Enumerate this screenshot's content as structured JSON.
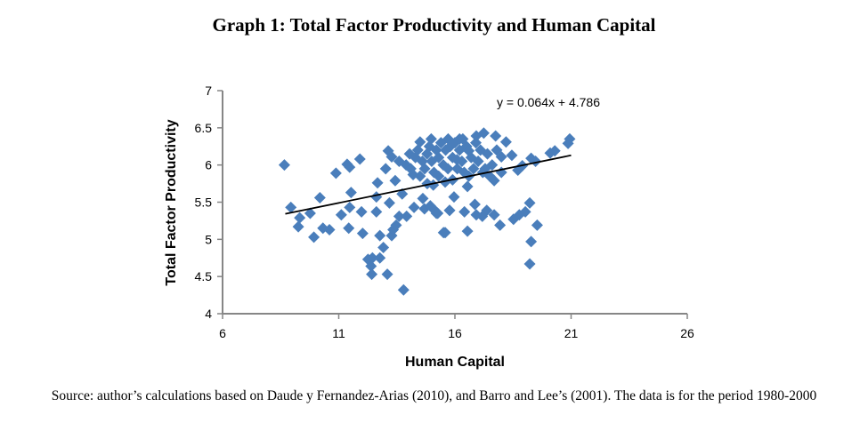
{
  "chart_data": {
    "type": "scatter",
    "title": "Graph 1: Total Factor Productivity and Human Capital",
    "xlabel": "Human Capital",
    "ylabel": "Total Factor Productivity",
    "xlim": [
      6,
      26
    ],
    "ylim": [
      4,
      7
    ],
    "xticks": [
      "6",
      "11",
      "16",
      "21",
      "26"
    ],
    "yticks": [
      "4",
      "4.5",
      "5",
      "5.5",
      "6",
      "6.5",
      "7"
    ],
    "xtick_values": [
      6,
      11,
      16,
      21,
      26
    ],
    "ytick_values": [
      4,
      4.5,
      5,
      5.5,
      6,
      6.5,
      7
    ],
    "grid": false,
    "marker_color": "#4a7ebb",
    "trendline": {
      "slope": 0.064,
      "intercept": 4.786,
      "x_range": [
        8.7,
        21
      ],
      "label": "y = 0.064x + 4.786",
      "color": "#000000"
    },
    "points": [
      [
        8.66,
        6.0
      ],
      [
        8.94,
        5.43
      ],
      [
        9.32,
        5.29
      ],
      [
        9.26,
        5.17
      ],
      [
        9.77,
        5.35
      ],
      [
        9.93,
        5.03
      ],
      [
        10.19,
        5.56
      ],
      [
        10.32,
        5.15
      ],
      [
        10.6,
        5.13
      ],
      [
        10.88,
        5.89
      ],
      [
        11.11,
        5.33
      ],
      [
        11.36,
        6.01
      ],
      [
        11.47,
        5.97
      ],
      [
        11.53,
        5.63
      ],
      [
        11.47,
        5.43
      ],
      [
        11.43,
        5.15
      ],
      [
        11.91,
        6.08
      ],
      [
        11.98,
        5.37
      ],
      [
        12.03,
        5.08
      ],
      [
        12.26,
        4.73
      ],
      [
        12.45,
        4.75
      ],
      [
        12.39,
        4.64
      ],
      [
        12.42,
        4.53
      ],
      [
        12.62,
        5.37
      ],
      [
        12.67,
        5.76
      ],
      [
        12.62,
        5.57
      ],
      [
        12.77,
        5.05
      ],
      [
        12.77,
        4.75
      ],
      [
        12.92,
        4.89
      ],
      [
        13.09,
        4.53
      ],
      [
        13.13,
        6.19
      ],
      [
        13.18,
        5.49
      ],
      [
        13.28,
        5.05
      ],
      [
        13.34,
        5.13
      ],
      [
        13.47,
        5.19
      ],
      [
        13.6,
        5.31
      ],
      [
        13.79,
        4.32
      ],
      [
        13.73,
        5.61
      ],
      [
        13.43,
        5.79
      ],
      [
        13.02,
        5.95
      ],
      [
        13.28,
        6.11
      ],
      [
        13.6,
        6.05
      ],
      [
        13.92,
        5.31
      ],
      [
        14.05,
        6.15
      ],
      [
        14.2,
        5.87
      ],
      [
        14.24,
        5.43
      ],
      [
        14.5,
        6.31
      ],
      [
        14.62,
        5.55
      ],
      [
        14.69,
        5.41
      ],
      [
        14.81,
        5.75
      ],
      [
        14.98,
        6.35
      ],
      [
        15.07,
        5.73
      ],
      [
        15.13,
        5.39
      ],
      [
        15.26,
        5.35
      ],
      [
        15.51,
        5.09
      ],
      [
        15.58,
        5.77
      ],
      [
        15.71,
        6.35
      ],
      [
        15.77,
        5.39
      ],
      [
        15.96,
        5.57
      ],
      [
        13.9,
        6.0
      ],
      [
        14.1,
        5.95
      ],
      [
        14.3,
        6.1
      ],
      [
        14.4,
        6.2
      ],
      [
        14.6,
        6.05
      ],
      [
        14.7,
        5.95
      ],
      [
        14.8,
        6.15
      ],
      [
        14.9,
        6.25
      ],
      [
        15.0,
        6.05
      ],
      [
        15.1,
        5.9
      ],
      [
        15.2,
        6.2
      ],
      [
        15.3,
        6.1
      ],
      [
        15.4,
        6.3
      ],
      [
        15.5,
        6.0
      ],
      [
        15.6,
        6.2
      ],
      [
        15.7,
        5.95
      ],
      [
        15.8,
        6.25
      ],
      [
        15.9,
        6.1
      ],
      [
        16.0,
        6.3
      ],
      [
        16.1,
        5.95
      ],
      [
        16.2,
        6.2
      ],
      [
        16.3,
        6.05
      ],
      [
        16.4,
        5.9
      ],
      [
        16.5,
        6.25
      ],
      [
        16.7,
        6.1
      ],
      [
        16.8,
        5.95
      ],
      [
        16.9,
        6.3
      ],
      [
        17.0,
        6.05
      ],
      [
        17.1,
        6.2
      ],
      [
        17.3,
        5.95
      ],
      [
        17.4,
        6.15
      ],
      [
        17.6,
        6.0
      ],
      [
        17.8,
        6.2
      ],
      [
        18.0,
        5.9
      ],
      [
        15.3,
        5.85
      ],
      [
        15.9,
        5.8
      ],
      [
        16.6,
        5.85
      ],
      [
        17.2,
        5.9
      ],
      [
        14.5,
        5.85
      ],
      [
        16.2,
        6.35
      ],
      [
        20.94,
        6.35
      ],
      [
        20.87,
        6.29
      ],
      [
        20.3,
        6.19
      ],
      [
        20.1,
        6.16
      ],
      [
        19.47,
        6.05
      ],
      [
        19.28,
        6.09
      ],
      [
        18.9,
        5.99
      ],
      [
        18.71,
        5.93
      ],
      [
        19.22,
        5.49
      ],
      [
        19.03,
        5.37
      ],
      [
        18.77,
        5.33
      ],
      [
        18.52,
        5.27
      ],
      [
        19.54,
        5.19
      ],
      [
        19.28,
        4.97
      ],
      [
        19.22,
        4.67
      ],
      [
        17.94,
        5.19
      ],
      [
        17.69,
        5.33
      ],
      [
        17.37,
        5.39
      ],
      [
        17.18,
        5.31
      ],
      [
        16.86,
        5.47
      ],
      [
        16.92,
        5.33
      ],
      [
        16.41,
        5.37
      ],
      [
        16.54,
        5.11
      ],
      [
        15.58,
        5.09
      ],
      [
        15.77,
        5.39
      ],
      [
        15.2,
        5.35
      ],
      [
        14.94,
        5.45
      ],
      [
        16.54,
        5.71
      ],
      [
        17.69,
        5.79
      ],
      [
        17.5,
        5.85
      ],
      [
        17.24,
        6.43
      ],
      [
        17.75,
        6.39
      ],
      [
        18.2,
        6.31
      ],
      [
        18.45,
        6.13
      ],
      [
        18.0,
        6.11
      ],
      [
        16.92,
        6.39
      ],
      [
        16.34,
        6.35
      ],
      [
        16.6,
        6.19
      ],
      [
        16.09,
        6.07
      ]
    ]
  },
  "caption": "Source: author’s calculations based on Daude y Fernandez-Arias (2010), and Barro and Lee’s (2001). The data is for the period 1980-2000"
}
